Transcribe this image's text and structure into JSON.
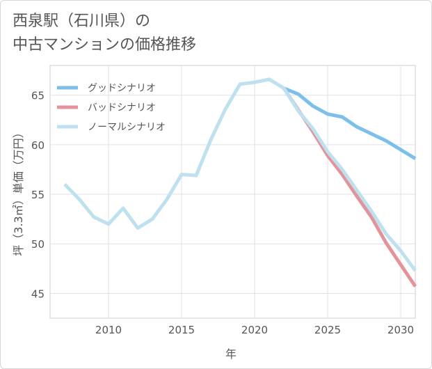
{
  "title": {
    "line1": "西泉駅（石川県）の",
    "line2": "中古マンションの価格推移"
  },
  "chart_data": {
    "type": "line",
    "xlabel": "年",
    "ylabel": "坪（3.3㎡）単価（万円）",
    "xlim": [
      2006,
      2031
    ],
    "ylim": [
      42.5,
      68
    ],
    "xticks": [
      2010,
      2015,
      2020,
      2025,
      2030
    ],
    "yticks": [
      45,
      50,
      55,
      60,
      65
    ],
    "grid": true,
    "legend_position": "top-left",
    "series": [
      {
        "name": "グッドシナリオ",
        "color": "#7cc0ea",
        "x": [
          2022,
          2023,
          2024,
          2025,
          2026,
          2027,
          2028,
          2029,
          2030,
          2031
        ],
        "values": [
          65.7,
          65.1,
          63.9,
          63.1,
          62.8,
          61.8,
          61.1,
          60.4,
          59.5,
          58.6
        ]
      },
      {
        "name": "バッドシナリオ",
        "color": "#e3949b",
        "x": [
          2022,
          2023,
          2024,
          2025,
          2026,
          2027,
          2028,
          2029,
          2030,
          2031
        ],
        "values": [
          65.7,
          63.5,
          61.3,
          58.9,
          57.0,
          54.8,
          52.7,
          50.1,
          47.9,
          45.7
        ]
      },
      {
        "name": "ノーマルシナリオ",
        "color": "#bfe0ee",
        "x": [
          2007,
          2008,
          2009,
          2010,
          2011,
          2012,
          2013,
          2014,
          2015,
          2016,
          2017,
          2018,
          2019,
          2020,
          2021,
          2022,
          2023,
          2024,
          2025,
          2026,
          2027,
          2028,
          2029,
          2030,
          2031
        ],
        "values": [
          56.0,
          54.5,
          52.7,
          52.0,
          53.6,
          51.6,
          52.5,
          54.5,
          57.0,
          56.9,
          60.5,
          63.6,
          66.1,
          66.3,
          66.6,
          65.7,
          63.4,
          61.6,
          59.3,
          57.5,
          55.4,
          53.3,
          51.0,
          49.3,
          47.3
        ]
      }
    ]
  }
}
